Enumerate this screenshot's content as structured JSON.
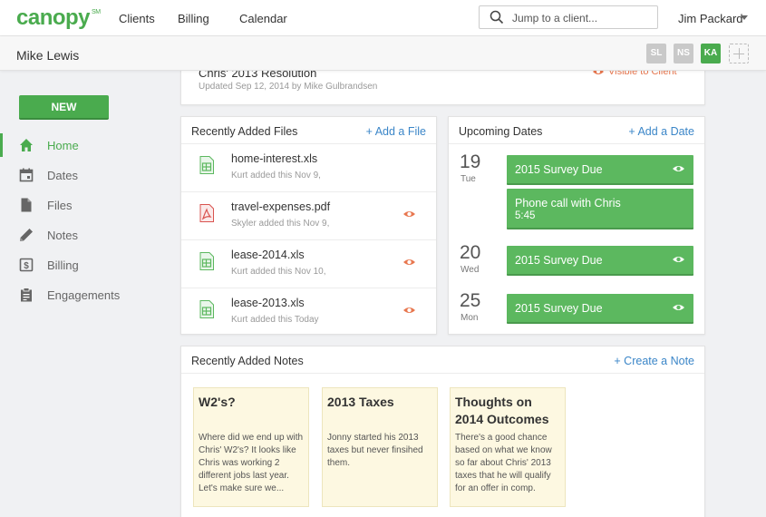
{
  "brand": {
    "name": "canopy",
    "mark": "SM",
    "color": "#4aab4e"
  },
  "nav": {
    "links": [
      "Clients",
      "Billing",
      "Calendar"
    ],
    "search_placeholder": "Jump to a client...",
    "user": "Jim Packard"
  },
  "client": {
    "name": "Mike Lewis",
    "team": [
      "SL",
      "NS",
      "KA"
    ]
  },
  "sidebar": {
    "new_label": "NEW",
    "items": [
      {
        "label": "Home",
        "icon": "home-icon",
        "active": true
      },
      {
        "label": "Dates",
        "icon": "calendar-icon",
        "active": false
      },
      {
        "label": "Files",
        "icon": "file-icon",
        "active": false
      },
      {
        "label": "Notes",
        "icon": "pencil-icon",
        "active": false
      },
      {
        "label": "Billing",
        "icon": "dollar-icon",
        "active": false
      },
      {
        "label": "Engagements",
        "icon": "clipboard-icon",
        "active": false
      }
    ]
  },
  "resolution": {
    "title": "Chris' 2013 Resolution",
    "updated": "Updated Sep 12, 2014 by Mike Gulbrandsen",
    "visibility": "Visible to Client"
  },
  "files": {
    "title": "Recently Added Files",
    "action": "+ Add a File",
    "items": [
      {
        "name": "home-interest.xls",
        "sub": "Kurt added this Nov 9,",
        "type": "spreadsheet",
        "visible": false
      },
      {
        "name": "travel-expenses.pdf",
        "sub": "Skyler added this Nov 9,",
        "type": "pdf",
        "visible": true
      },
      {
        "name": "lease-2014.xls",
        "sub": "Kurt added this Nov 10,",
        "type": "spreadsheet",
        "visible": true
      },
      {
        "name": "lease-2013.xls",
        "sub": "Kurt added this Today",
        "type": "spreadsheet",
        "visible": true
      }
    ]
  },
  "dates": {
    "title": "Upcoming Dates",
    "action": "+ Add a Date",
    "groups": [
      {
        "day": "19",
        "weekday": "Tue",
        "events": [
          {
            "title": "2015 Survey Due",
            "time": "",
            "visible": true
          },
          {
            "title": "Phone call with Chris",
            "time": "5:45",
            "visible": false
          }
        ]
      },
      {
        "day": "20",
        "weekday": "Wed",
        "events": [
          {
            "title": "2015 Survey Due",
            "time": "",
            "visible": true
          }
        ]
      },
      {
        "day": "25",
        "weekday": "Mon",
        "events": [
          {
            "title": "2015 Survey Due",
            "time": "",
            "visible": true
          }
        ]
      }
    ]
  },
  "notes": {
    "title": "Recently Added Notes",
    "action": "+ Create a Note",
    "items": [
      {
        "title": "W2's?",
        "body": "Where did we end up with Chris' W2's? It looks like Chris was working 2 different jobs last year. Let's make sure we..."
      },
      {
        "title": "2013 Taxes",
        "body": "Jonny started his 2013 taxes but never finsihed them."
      },
      {
        "title": "Thoughts on 2014 Outcomes",
        "body": "There's a good chance based on what we know so far about Chris' 2013 taxes that he will qualify for an offer in comp."
      }
    ]
  }
}
